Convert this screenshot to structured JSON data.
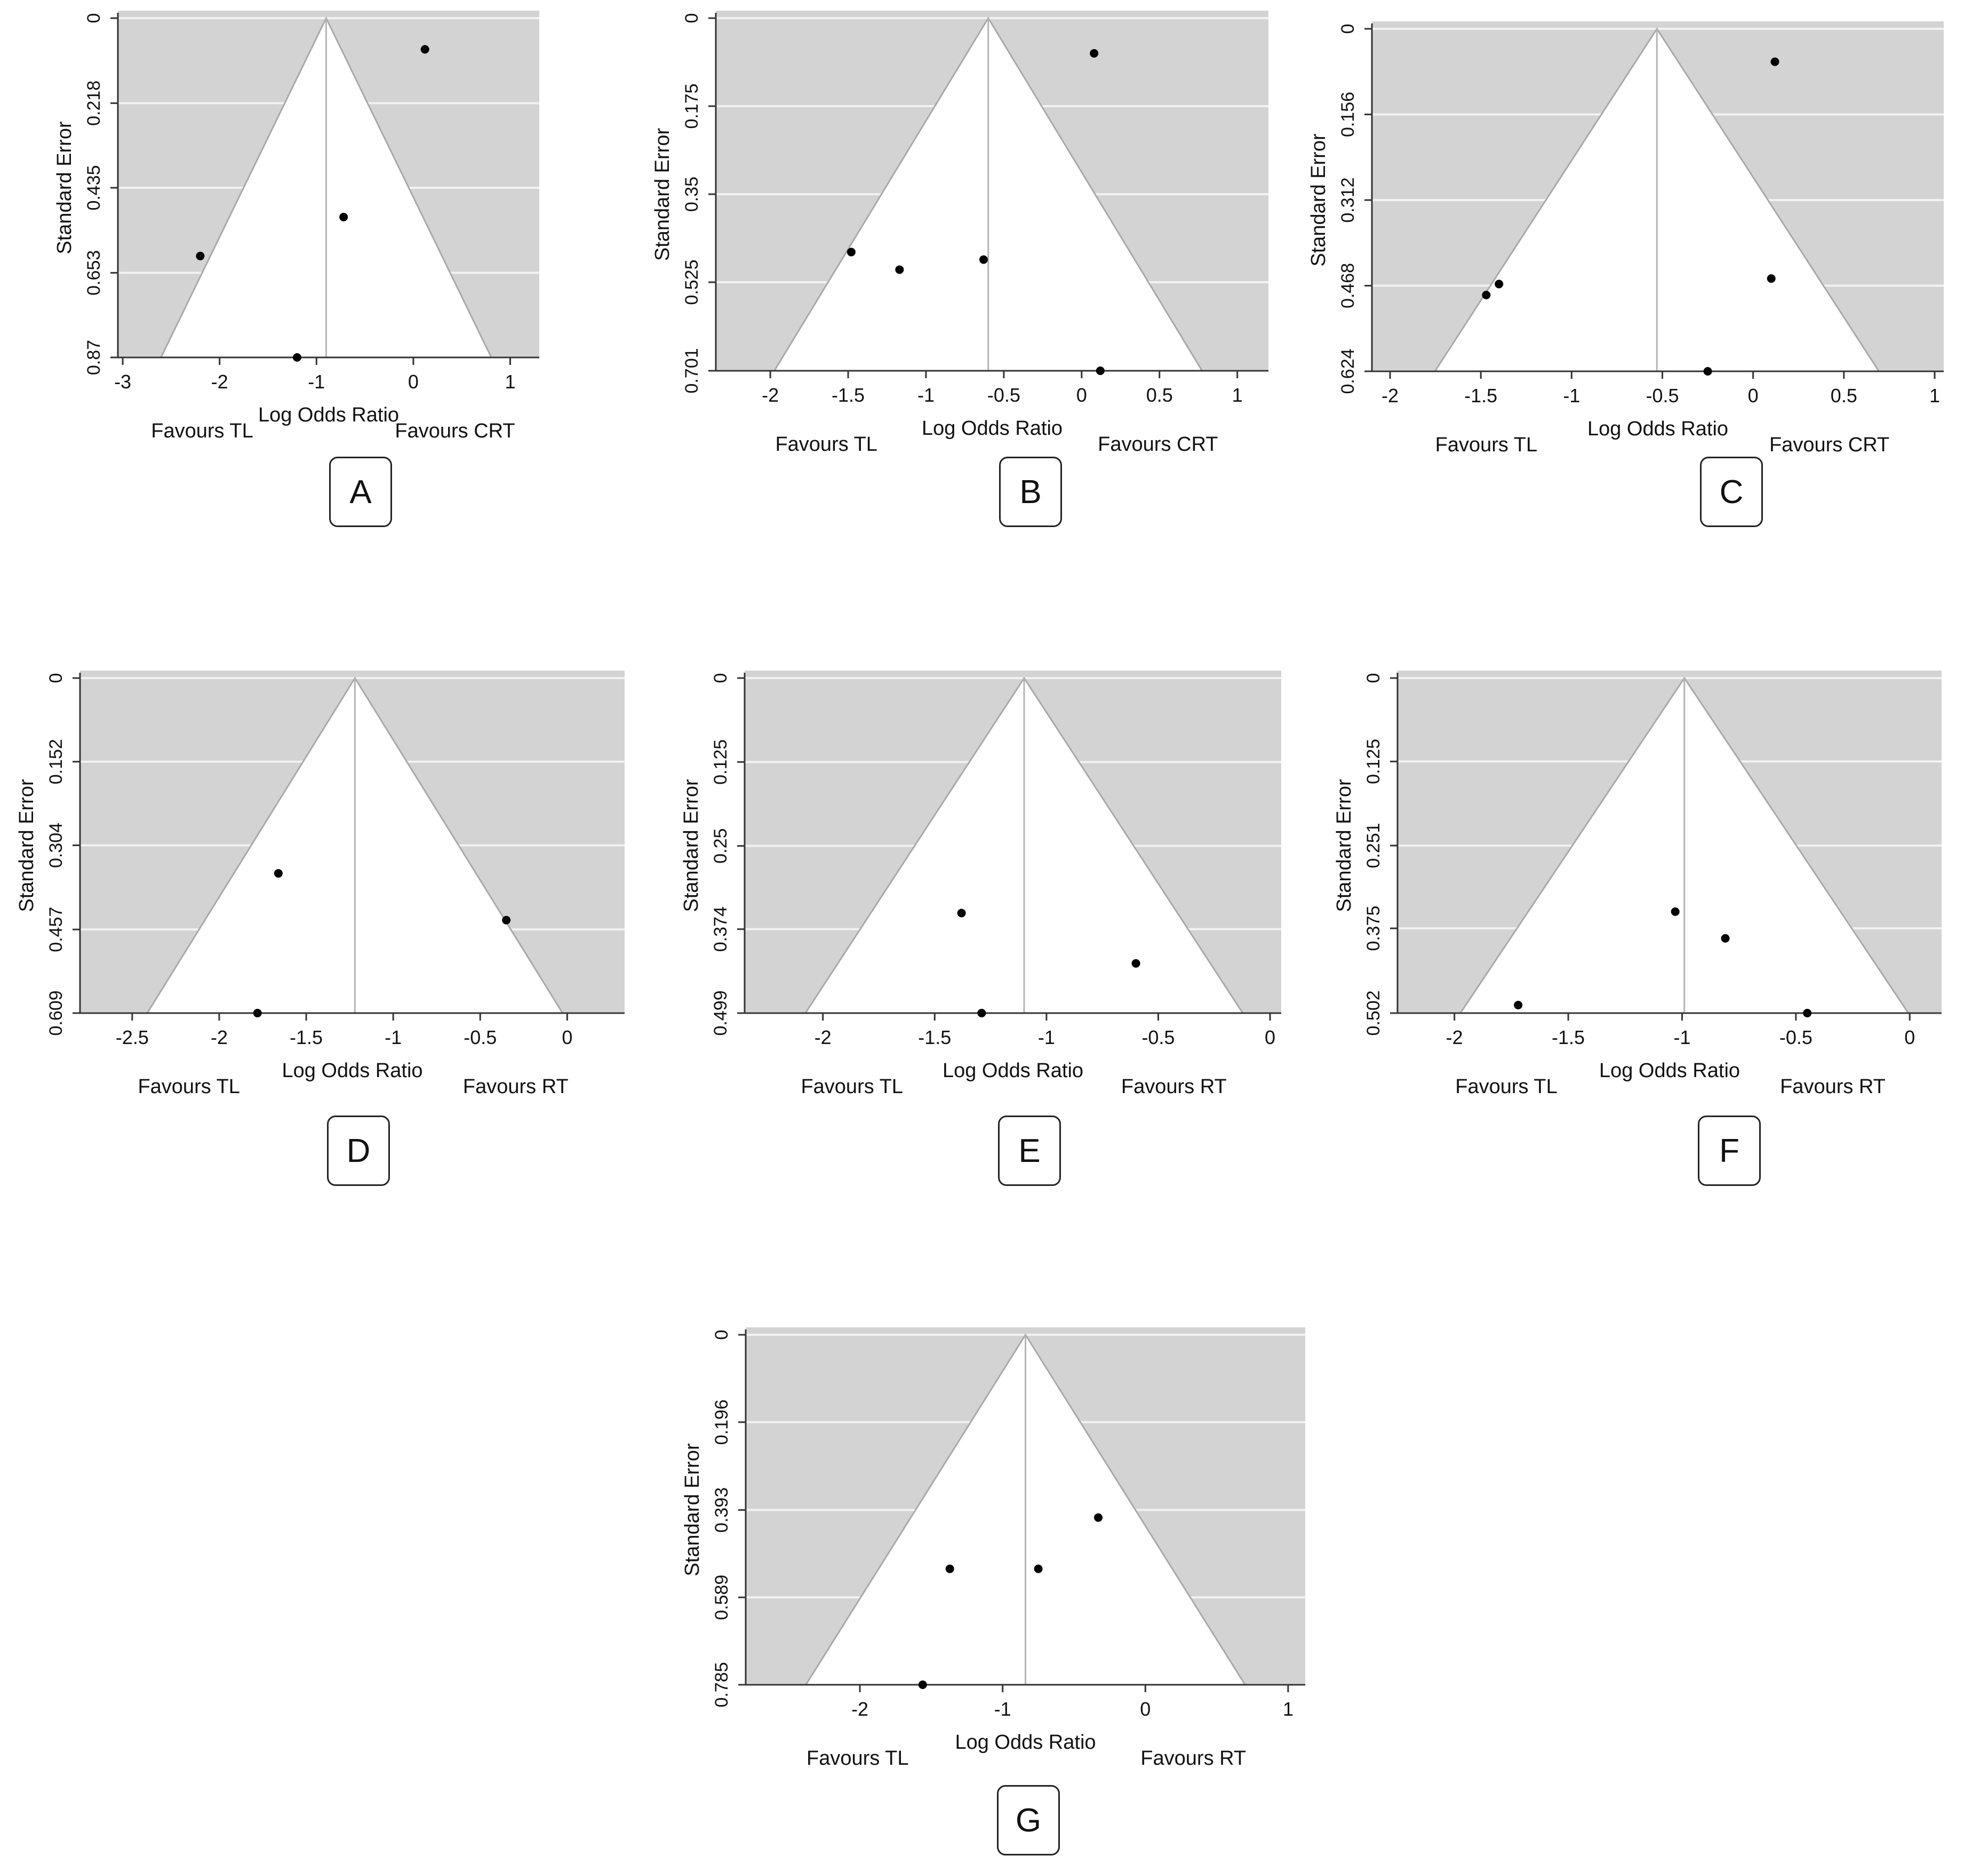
{
  "chart_data": [
    {
      "id": "A",
      "type": "scatter",
      "subtype": "funnel-plot",
      "ylabel": "Standard Error",
      "xlabel": "Log Odds Ratio",
      "favours_left": "Favours TL",
      "favours_right": "Favours CRT",
      "xlim": [
        -3.05,
        1.3
      ],
      "ylim": [
        0,
        0.87
      ],
      "xticks": [
        -3,
        -2,
        -1,
        0,
        1
      ],
      "xtick_labels": [
        "-3",
        "-2",
        "-1",
        "0",
        "1"
      ],
      "yticks": [
        0,
        0.218,
        0.435,
        0.653,
        0.87
      ],
      "ytick_labels": [
        "0",
        "0.218",
        "0.435",
        "0.653",
        "0.87"
      ],
      "center": -0.9,
      "points": [
        {
          "x": 0.12,
          "y": 0.08
        },
        {
          "x": -0.72,
          "y": 0.51
        },
        {
          "x": -2.2,
          "y": 0.61
        },
        {
          "x": -1.2,
          "y": 0.87
        }
      ]
    },
    {
      "id": "B",
      "type": "scatter",
      "subtype": "funnel-plot",
      "ylabel": "Standard Error",
      "xlabel": "Log Odds Ratio",
      "favours_left": "Favours TL",
      "favours_right": "Favours CRT",
      "xlim": [
        -2.35,
        1.2
      ],
      "ylim": [
        0,
        0.701
      ],
      "xticks": [
        -2,
        -1.5,
        -1,
        -0.5,
        0,
        0.5,
        1
      ],
      "xtick_labels": [
        "-2",
        "-1.5",
        "-1",
        "-0.5",
        "0",
        "0.5",
        "1"
      ],
      "yticks": [
        0,
        0.175,
        0.35,
        0.525,
        0.701
      ],
      "ytick_labels": [
        "0",
        "0.175",
        "0.35",
        "0.525",
        "0.701"
      ],
      "center": -0.6,
      "points": [
        {
          "x": 0.08,
          "y": 0.07
        },
        {
          "x": -1.48,
          "y": 0.465
        },
        {
          "x": -1.17,
          "y": 0.5
        },
        {
          "x": -0.63,
          "y": 0.48
        },
        {
          "x": 0.12,
          "y": 0.701
        }
      ]
    },
    {
      "id": "C",
      "type": "scatter",
      "subtype": "funnel-plot",
      "ylabel": "Standard Error",
      "xlabel": "Log Odds Ratio",
      "favours_left": "Favours TL",
      "favours_right": "Favours CRT",
      "xlim": [
        -2.1,
        1.05
      ],
      "ylim": [
        0,
        0.624
      ],
      "xticks": [
        -2,
        -1.5,
        -1,
        -0.5,
        0,
        0.5,
        1
      ],
      "xtick_labels": [
        "-2",
        "-1.5",
        "-1",
        "-0.5",
        "0",
        "0.5",
        "1"
      ],
      "yticks": [
        0,
        0.156,
        0.312,
        0.468,
        0.624
      ],
      "ytick_labels": [
        "0",
        "0.156",
        "0.312",
        "0.468",
        "0.624"
      ],
      "center": -0.53,
      "points": [
        {
          "x": 0.12,
          "y": 0.06
        },
        {
          "x": -1.47,
          "y": 0.485
        },
        {
          "x": -1.4,
          "y": 0.465
        },
        {
          "x": 0.1,
          "y": 0.455
        },
        {
          "x": -0.25,
          "y": 0.624
        }
      ]
    },
    {
      "id": "D",
      "type": "scatter",
      "subtype": "funnel-plot",
      "ylabel": "Standard Error",
      "xlabel": "Log Odds Ratio",
      "favours_left": "Favours TL",
      "favours_right": "Favours RT",
      "xlim": [
        -2.8,
        0.33
      ],
      "ylim": [
        0,
        0.609
      ],
      "xticks": [
        -2.5,
        -2,
        -1.5,
        -1,
        -0.5,
        0
      ],
      "xtick_labels": [
        "-2.5",
        "-2",
        "-1.5",
        "-1",
        "-0.5",
        "0"
      ],
      "yticks": [
        0,
        0.152,
        0.304,
        0.457,
        0.609
      ],
      "ytick_labels": [
        "0",
        "0.152",
        "0.304",
        "0.457",
        "0.609"
      ],
      "center": -1.22,
      "points": [
        {
          "x": -1.66,
          "y": 0.355
        },
        {
          "x": -0.35,
          "y": 0.44
        },
        {
          "x": -1.78,
          "y": 0.609
        }
      ]
    },
    {
      "id": "E",
      "type": "scatter",
      "subtype": "funnel-plot",
      "ylabel": "Standard Error",
      "xlabel": "Log Odds Ratio",
      "favours_left": "Favours TL",
      "favours_right": "Favours RT",
      "xlim": [
        -2.35,
        0.05
      ],
      "ylim": [
        0,
        0.499
      ],
      "xticks": [
        -2,
        -1.5,
        -1,
        -0.5,
        0
      ],
      "xtick_labels": [
        "-2",
        "-1.5",
        "-1",
        "-0.5",
        "0"
      ],
      "yticks": [
        0,
        0.125,
        0.25,
        0.374,
        0.499
      ],
      "ytick_labels": [
        "0",
        "0.125",
        "0.25",
        "0.374",
        "0.499"
      ],
      "center": -1.1,
      "points": [
        {
          "x": -1.38,
          "y": 0.35
        },
        {
          "x": -0.6,
          "y": 0.425
        },
        {
          "x": -1.29,
          "y": 0.499
        }
      ]
    },
    {
      "id": "F",
      "type": "scatter",
      "subtype": "funnel-plot",
      "ylabel": "Standard Error",
      "xlabel": "Log Odds Ratio",
      "favours_left": "Favours TL",
      "favours_right": "Favours RT",
      "xlim": [
        -2.25,
        0.14
      ],
      "ylim": [
        0,
        0.502
      ],
      "xticks": [
        -2,
        -1.5,
        -1,
        -0.5,
        0
      ],
      "xtick_labels": [
        "-2",
        "-1.5",
        "-1",
        "-0.5",
        "0"
      ],
      "yticks": [
        0,
        0.125,
        0.251,
        0.375,
        0.502
      ],
      "ytick_labels": [
        "0",
        "0.125",
        "0.251",
        "0.375",
        "0.502"
      ],
      "center": -0.99,
      "points": [
        {
          "x": -1.03,
          "y": 0.35
        },
        {
          "x": -0.81,
          "y": 0.39
        },
        {
          "x": -1.72,
          "y": 0.49
        },
        {
          "x": -0.45,
          "y": 0.502
        }
      ]
    },
    {
      "id": "G",
      "type": "scatter",
      "subtype": "funnel-plot",
      "ylabel": "Standard Error",
      "xlabel": "Log Odds Ratio",
      "favours_left": "Favours TL",
      "favours_right": "Favours RT",
      "xlim": [
        -2.8,
        1.12
      ],
      "ylim": [
        0,
        0.785
      ],
      "xticks": [
        -2,
        -1,
        0,
        1
      ],
      "xtick_labels": [
        "-2",
        "-1",
        "0",
        "1"
      ],
      "yticks": [
        0,
        0.196,
        0.393,
        0.589,
        0.785
      ],
      "ytick_labels": [
        "0",
        "0.196",
        "0.393",
        "0.589",
        "0.785"
      ],
      "center": -0.84,
      "points": [
        {
          "x": -0.33,
          "y": 0.41
        },
        {
          "x": -1.37,
          "y": 0.525
        },
        {
          "x": -0.75,
          "y": 0.525
        },
        {
          "x": -1.56,
          "y": 0.785
        }
      ]
    }
  ],
  "colors": {
    "shade": "#d3d3d3",
    "gridline": "#f2f2f2",
    "funnel_edge": "#a9a9a9",
    "center_line": "#b5b5b5",
    "point": "#000000",
    "axis": "#333333"
  }
}
